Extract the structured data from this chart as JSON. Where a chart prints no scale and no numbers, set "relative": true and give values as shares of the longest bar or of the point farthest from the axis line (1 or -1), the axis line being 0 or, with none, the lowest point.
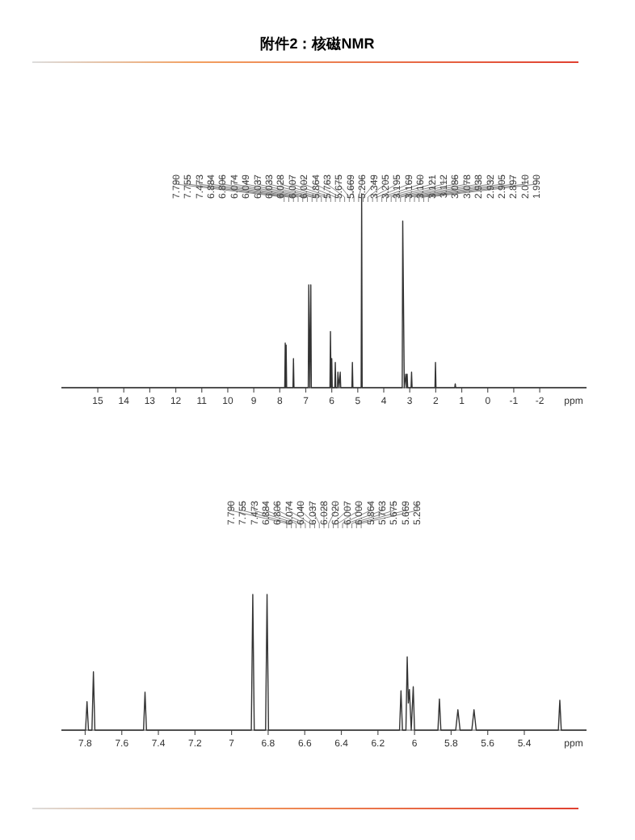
{
  "chart_data": [
    {
      "type": "line",
      "title": "附件2：核磁NMR",
      "xlabel": "ppm",
      "relative": true,
      "xlim": [
        16.4,
        -3.8
      ],
      "xticks": [
        15,
        14,
        13,
        12,
        11,
        10,
        9,
        8,
        7,
        6,
        5,
        4,
        3,
        2,
        1,
        0,
        -1,
        -2
      ],
      "series": [
        {
          "color": "#333333",
          "x": [
            16.4,
            7.81,
            7.79,
            7.7725,
            7.755,
            7.735,
            7.493,
            7.473,
            7.453,
            6.904,
            6.884,
            6.845,
            6.806,
            6.786,
            6.07,
            6.05,
            6.025,
            6.0,
            5.98,
            5.884,
            5.864,
            5.844,
            5.783,
            5.763,
            5.72,
            5.675,
            5.655,
            5.226,
            5.206,
            5.186,
            4.87,
            4.85,
            4.83,
            3.29,
            3.27,
            3.21,
            3.15,
            3.125,
            3.1,
            3.08,
            2.95,
            2.93,
            2.91,
            2.03,
            2.01,
            1.99,
            1.27,
            1.25,
            1.23,
            -3.8
          ],
          "values": [
            0,
            0,
            0.23,
            0,
            0.22,
            0,
            0,
            0.15,
            0,
            0,
            0.53,
            0,
            0.53,
            0,
            0,
            0.29,
            0,
            0.15,
            0,
            0,
            0.13,
            0,
            0,
            0.08,
            0,
            0.08,
            0,
            0,
            0.13,
            0,
            0,
            1,
            0,
            0,
            0.86,
            0,
            0.07,
            0,
            0.07,
            0,
            0,
            0.08,
            0,
            0,
            0.13,
            0,
            0,
            0.02,
            0,
            0
          ]
        }
      ],
      "annotations": [
        "7.790",
        "7.755",
        "7.473",
        "6.884",
        "6.806",
        "6.074",
        "6.049",
        "6.037",
        "6.033",
        "6.028",
        "6.007",
        "6.002",
        "5.864",
        "5.763",
        "5.675",
        "5.669",
        "5.206",
        "3.349",
        "3.205",
        "3.195",
        "3.169",
        "3.160",
        "3.121",
        "3.112",
        "3.086",
        "3.078",
        "2.938",
        "2.932",
        "2.905",
        "2.897",
        "2.010",
        "1.990"
      ]
    },
    {
      "type": "line",
      "xlabel": "ppm",
      "relative": true,
      "xlim": [
        7.93,
        5.06
      ],
      "xticks": [
        7.8,
        7.6,
        7.4,
        7.2,
        7.0,
        6.8,
        6.6,
        6.4,
        6.2,
        6.0,
        5.8,
        5.6,
        5.4
      ],
      "series": [
        {
          "color": "#333333",
          "x": [
            7.93,
            7.798,
            7.79,
            7.782,
            7.763,
            7.755,
            7.747,
            7.481,
            7.473,
            7.465,
            6.892,
            6.884,
            6.876,
            6.814,
            6.806,
            6.798,
            6.082,
            6.074,
            6.066,
            6.047,
            6.04,
            6.034,
            6.028,
            6.018,
            6.007,
            6.0,
            5.872,
            5.864,
            5.856,
            5.775,
            5.763,
            5.751,
            5.687,
            5.675,
            5.663,
            5.214,
            5.206,
            5.198,
            5.06
          ],
          "values": [
            0,
            0,
            0.21,
            0,
            0,
            0.43,
            0,
            0,
            0.28,
            0,
            0,
            1,
            0,
            0,
            1,
            0,
            0,
            0.29,
            0,
            0,
            0.54,
            0.2,
            0.3,
            0,
            0.32,
            0,
            0,
            0.23,
            0,
            0,
            0.15,
            0,
            0,
            0.15,
            0,
            0,
            0.22,
            0,
            0
          ]
        }
      ],
      "annotations": [
        "7.790",
        "7.755",
        "7.473",
        "6.884",
        "6.806",
        "6.074",
        "6.040",
        "6.037",
        "6.028",
        "6.020",
        "6.007",
        "6.000",
        "5.864",
        "5.763",
        "5.675",
        "5.669",
        "5.206"
      ]
    }
  ]
}
